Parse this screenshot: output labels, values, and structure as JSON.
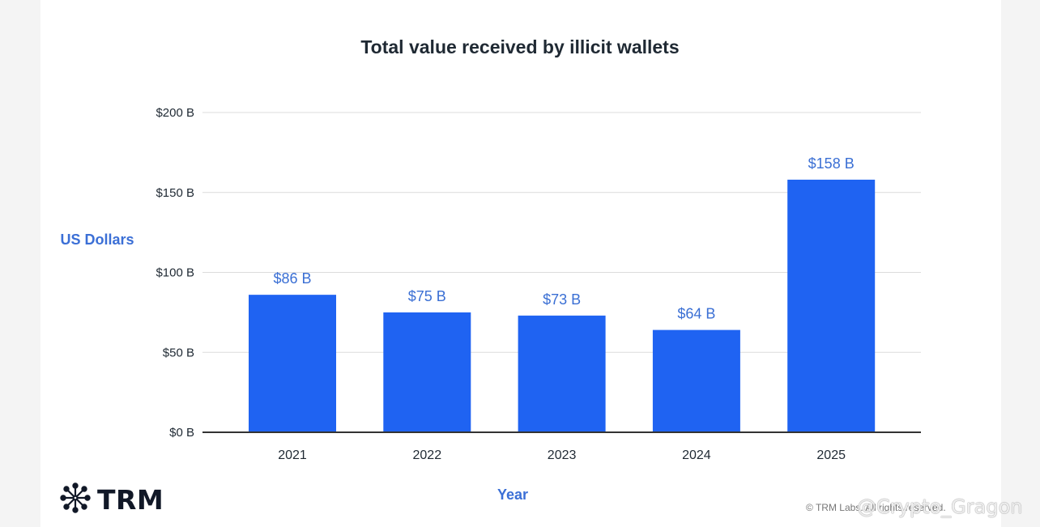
{
  "colors": {
    "bar": "#1f63f2",
    "label": "#3a6fd4",
    "axis_title": "#3b6fd6",
    "title": "#1f2933",
    "tick": "#1f2933",
    "grid": "#dcdcdc",
    "baseline": "#333333"
  },
  "brand": {
    "logo_text": "TRM",
    "logo_icon": "asterisk-network-icon"
  },
  "footer": {
    "copyright": "© TRM Labs. All rights reserved.",
    "watermark": "@Crypto_Gragon"
  },
  "chart_data": {
    "type": "bar",
    "title": "Total value received by illicit wallets",
    "xlabel": "Year",
    "ylabel": "US Dollars",
    "categories": [
      "2021",
      "2022",
      "2023",
      "2024",
      "2025"
    ],
    "values": [
      86,
      75,
      73,
      64,
      158
    ],
    "data_labels": [
      "$86 B",
      "$75 B",
      "$73 B",
      "$64 B",
      "$158 B"
    ],
    "ylim": [
      0,
      200
    ],
    "yticks": [
      0,
      50,
      100,
      150,
      200
    ],
    "ytick_labels": [
      "$0 B",
      "$50 B",
      "$100 B",
      "$150 B",
      "$200 B"
    ],
    "grid": true,
    "legend": "none"
  }
}
